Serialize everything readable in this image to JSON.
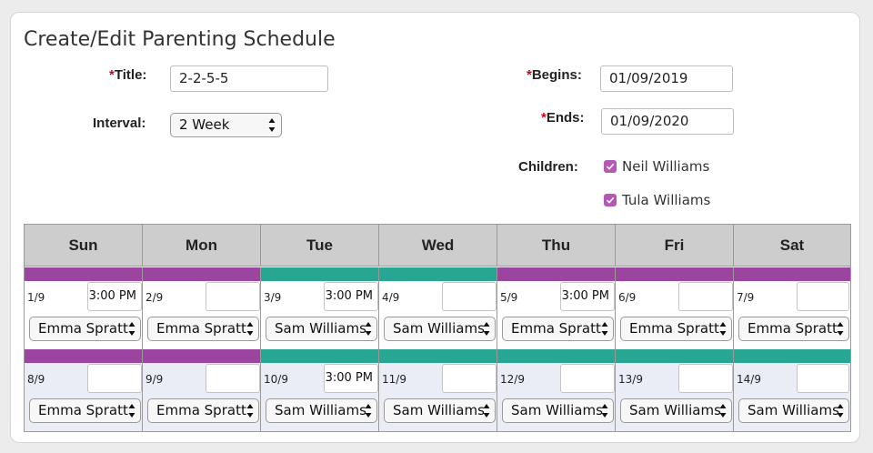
{
  "page": {
    "title": "Create/Edit Parenting Schedule"
  },
  "form": {
    "required_mark": "*",
    "title_label": "Title:",
    "title_value": "2-2-5-5",
    "interval_label": "Interval:",
    "interval_value": "2 Week",
    "begins_label": "Begins:",
    "begins_value": "01/09/2019",
    "ends_label": "Ends:",
    "ends_value": "01/09/2020",
    "children_label": "Children:",
    "children": [
      {
        "name": "Neil Williams",
        "checked": true
      },
      {
        "name": "Tula Williams",
        "checked": true
      }
    ]
  },
  "colors": {
    "purple": "#9b45a0",
    "teal": "#26a693",
    "checkbox": "#b35ab7",
    "required": "#d0021b"
  },
  "calendar": {
    "days": [
      "Sun",
      "Mon",
      "Tue",
      "Wed",
      "Thu",
      "Fri",
      "Sat"
    ],
    "weeks": [
      {
        "cells": [
          {
            "date": "1/9",
            "time": "3:00 PM",
            "parent": "Emma Spratt",
            "color": "purple"
          },
          {
            "date": "2/9",
            "time": "",
            "parent": "Emma Spratt",
            "color": "purple"
          },
          {
            "date": "3/9",
            "time": "3:00 PM",
            "parent": "Sam Williams",
            "color": "teal"
          },
          {
            "date": "4/9",
            "time": "",
            "parent": "Sam Williams",
            "color": "teal"
          },
          {
            "date": "5/9",
            "time": "3:00 PM",
            "parent": "Emma Spratt",
            "color": "purple"
          },
          {
            "date": "6/9",
            "time": "",
            "parent": "Emma Spratt",
            "color": "purple"
          },
          {
            "date": "7/9",
            "time": "",
            "parent": "Emma Spratt",
            "color": "purple"
          }
        ]
      },
      {
        "cells": [
          {
            "date": "8/9",
            "time": "",
            "parent": "Emma Spratt",
            "color": "purple"
          },
          {
            "date": "9/9",
            "time": "",
            "parent": "Emma Spratt",
            "color": "purple"
          },
          {
            "date": "10/9",
            "time": "3:00 PM",
            "parent": "Sam Williams",
            "color": "teal"
          },
          {
            "date": "11/9",
            "time": "",
            "parent": "Sam Williams",
            "color": "teal"
          },
          {
            "date": "12/9",
            "time": "",
            "parent": "Sam Williams",
            "color": "teal"
          },
          {
            "date": "13/9",
            "time": "",
            "parent": "Sam Williams",
            "color": "teal"
          },
          {
            "date": "14/9",
            "time": "",
            "parent": "Sam Williams",
            "color": "teal"
          }
        ]
      }
    ]
  }
}
